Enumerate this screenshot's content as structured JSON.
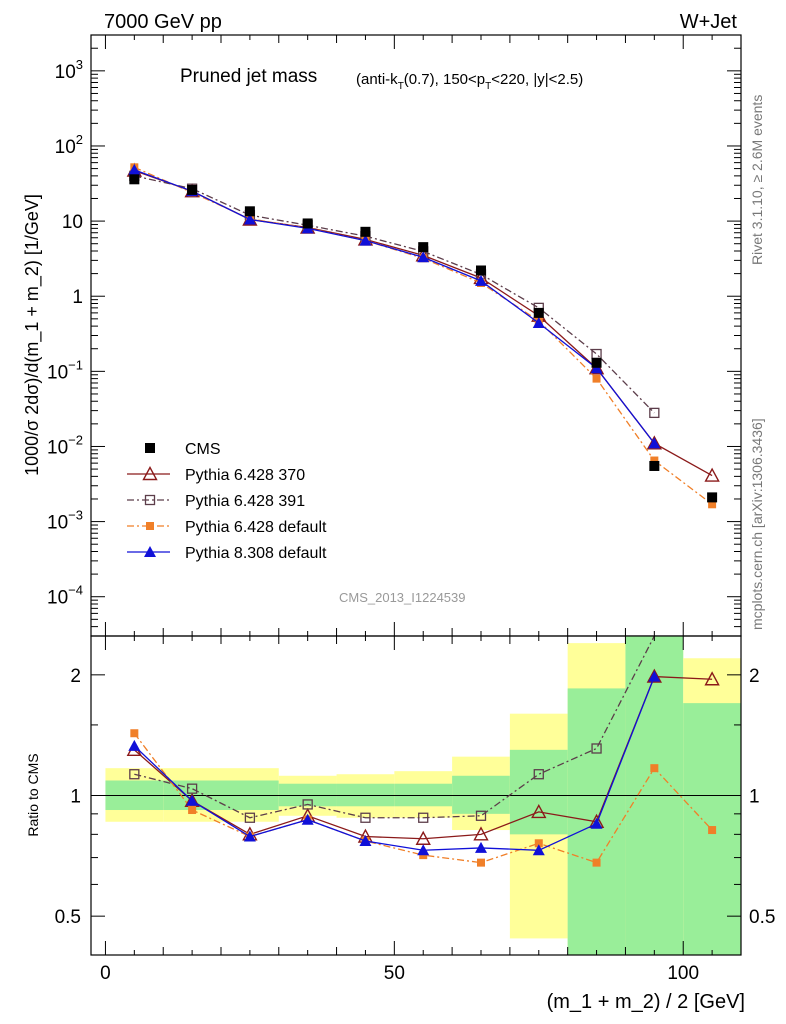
{
  "header": {
    "left": "7000 GeV pp",
    "right": "W+Jet"
  },
  "side_labels": {
    "rivet": "Rivet 3.1.10, ≥ 2.6M events",
    "mcplots": "mcplots.cern.ch [arXiv:1306.3436]"
  },
  "watermark": "CMS_2013_I1224539",
  "chart_data": [
    {
      "type": "scatter",
      "panel": "main",
      "title": "Pruned jet mass",
      "title_detail": {
        "pre": "(anti-k",
        "sub1": "T",
        "mid1": "(0.7), 150<p",
        "sub2": "T",
        "post": "<220, |y|<2.5)"
      },
      "ylabel": "1000/σ 2dσ)/d(m_1 + m_2) [1/GeV]",
      "yscale": "log",
      "ylim": [
        3e-05,
        3000
      ],
      "xlim": [
        -2.5,
        110
      ],
      "yticks": [
        {
          "v": 0.0001,
          "base": "10",
          "exp": "−4"
        },
        {
          "v": 0.001,
          "base": "10",
          "exp": "−3"
        },
        {
          "v": 0.01,
          "base": "10",
          "exp": "−2"
        },
        {
          "v": 0.1,
          "base": "10",
          "exp": "−1"
        },
        {
          "v": 1,
          "base": "1",
          "exp": ""
        },
        {
          "v": 10,
          "base": "10",
          "exp": ""
        },
        {
          "v": 100,
          "base": "10",
          "exp": "2"
        },
        {
          "v": 1000,
          "base": "10",
          "exp": "3"
        }
      ],
      "legend_position": "bottom-left",
      "x": [
        5,
        15,
        25,
        35,
        45,
        55,
        65,
        75,
        85,
        95,
        105
      ],
      "series": [
        {
          "name": "CMS",
          "color": "#000000",
          "marker": "square",
          "line": "none",
          "values": [
            36,
            26,
            13.5,
            9.3,
            7.2,
            4.5,
            2.2,
            0.6,
            0.13,
            0.0055,
            0.0021
          ]
        },
        {
          "name": "Pythia 6.428 370",
          "color": "#8b1a1a",
          "marker": "open-triangle",
          "line": "solid",
          "values": [
            47,
            25,
            10.5,
            8.2,
            5.7,
            3.5,
            1.75,
            0.55,
            0.11,
            0.011,
            0.0041
          ]
        },
        {
          "name": "Pythia 6.428 391",
          "color": "#5c3d4a",
          "marker": "open-square",
          "line": "dashdot",
          "values": [
            40,
            27,
            12,
            8.8,
            6.3,
            3.95,
            1.95,
            0.7,
            0.17,
            0.028,
            null
          ]
        },
        {
          "name": "Pythia 6.428 default",
          "color": "#f07f28",
          "marker": "square-small",
          "line": "dashdot",
          "values": [
            52,
            24,
            10.7,
            8.1,
            5.5,
            3.2,
            1.5,
            0.47,
            0.08,
            0.0065,
            0.0017
          ]
        },
        {
          "name": "Pythia 8.308 default",
          "color": "#1010d8",
          "marker": "triangle",
          "line": "solid",
          "values": [
            48,
            25,
            10.5,
            8.0,
            5.5,
            3.3,
            1.6,
            0.44,
            0.11,
            0.011,
            null
          ]
        }
      ]
    },
    {
      "type": "scatter",
      "panel": "ratio",
      "ylabel": "Ratio to CMS",
      "xlabel": "(m_1 + m_2) / 2 [GeV]",
      "yscale": "log",
      "ylim": [
        0.4,
        2.5
      ],
      "xlim": [
        -2.5,
        110
      ],
      "yticks": [
        {
          "v": 0.5,
          "label": "0.5"
        },
        {
          "v": 1,
          "label": "1"
        },
        {
          "v": 2,
          "label": "2"
        }
      ],
      "xticks": [
        {
          "v": 0,
          "label": "0"
        },
        {
          "v": 50,
          "label": "50"
        },
        {
          "v": 100,
          "label": "100"
        }
      ],
      "bands": [
        {
          "x0": 0,
          "x1": 10,
          "y1": [
            0.92,
            1.09
          ],
          "y2": [
            0.86,
            1.17
          ]
        },
        {
          "x0": 10,
          "x1": 20,
          "y1": [
            0.92,
            1.09
          ],
          "y2": [
            0.86,
            1.17
          ]
        },
        {
          "x0": 20,
          "x1": 30,
          "y1": [
            0.92,
            1.09
          ],
          "y2": [
            0.86,
            1.17
          ]
        },
        {
          "x0": 30,
          "x1": 40,
          "y1": [
            0.94,
            1.07
          ],
          "y2": [
            0.89,
            1.12
          ]
        },
        {
          "x0": 40,
          "x1": 50,
          "y1": [
            0.94,
            1.07
          ],
          "y2": [
            0.88,
            1.13
          ]
        },
        {
          "x0": 50,
          "x1": 60,
          "y1": [
            0.94,
            1.07
          ],
          "y2": [
            0.88,
            1.15
          ]
        },
        {
          "x0": 60,
          "x1": 70,
          "y1": [
            0.9,
            1.12
          ],
          "y2": [
            0.82,
            1.25
          ]
        },
        {
          "x0": 70,
          "x1": 80,
          "y1": [
            0.8,
            1.3
          ],
          "y2": [
            0.44,
            1.6
          ]
        },
        {
          "x0": 80,
          "x1": 90,
          "y1": [
            0.4,
            1.85
          ],
          "y2": [
            0.4,
            2.4
          ]
        },
        {
          "x0": 90,
          "x1": 100,
          "y1": [
            0.4,
            2.5
          ],
          "y2": [
            0.4,
            2.5
          ]
        },
        {
          "x0": 100,
          "x1": 110,
          "y1": [
            0.4,
            1.7
          ],
          "y2": [
            0.4,
            2.2
          ]
        }
      ],
      "band_colors": {
        "inner": "#99ee99",
        "outer": "#ffff99"
      },
      "x": [
        5,
        15,
        25,
        35,
        45,
        55,
        65,
        75,
        85,
        95,
        105
      ],
      "series": [
        {
          "name": "Pythia 6.428 370",
          "color": "#8b1a1a",
          "marker": "open-triangle",
          "line": "solid",
          "values": [
            1.3,
            0.97,
            0.8,
            0.89,
            0.79,
            0.78,
            0.8,
            0.91,
            0.86,
            1.98,
            1.95
          ]
        },
        {
          "name": "Pythia 6.428 391",
          "color": "#5c3d4a",
          "marker": "open-square",
          "line": "dashdot",
          "values": [
            1.13,
            1.04,
            0.88,
            0.95,
            0.88,
            0.88,
            0.89,
            1.13,
            1.31,
            2.7,
            null
          ]
        },
        {
          "name": "Pythia 6.428 default",
          "color": "#f07f28",
          "marker": "square-small",
          "line": "dashdot",
          "values": [
            1.43,
            0.92,
            0.79,
            0.87,
            0.77,
            0.71,
            0.68,
            0.76,
            0.68,
            1.17,
            0.82
          ]
        },
        {
          "name": "Pythia 8.308 default",
          "color": "#1010d8",
          "marker": "triangle",
          "line": "solid",
          "values": [
            1.33,
            0.97,
            0.79,
            0.87,
            0.77,
            0.73,
            0.74,
            0.73,
            0.85,
            1.98,
            null
          ]
        }
      ]
    }
  ]
}
